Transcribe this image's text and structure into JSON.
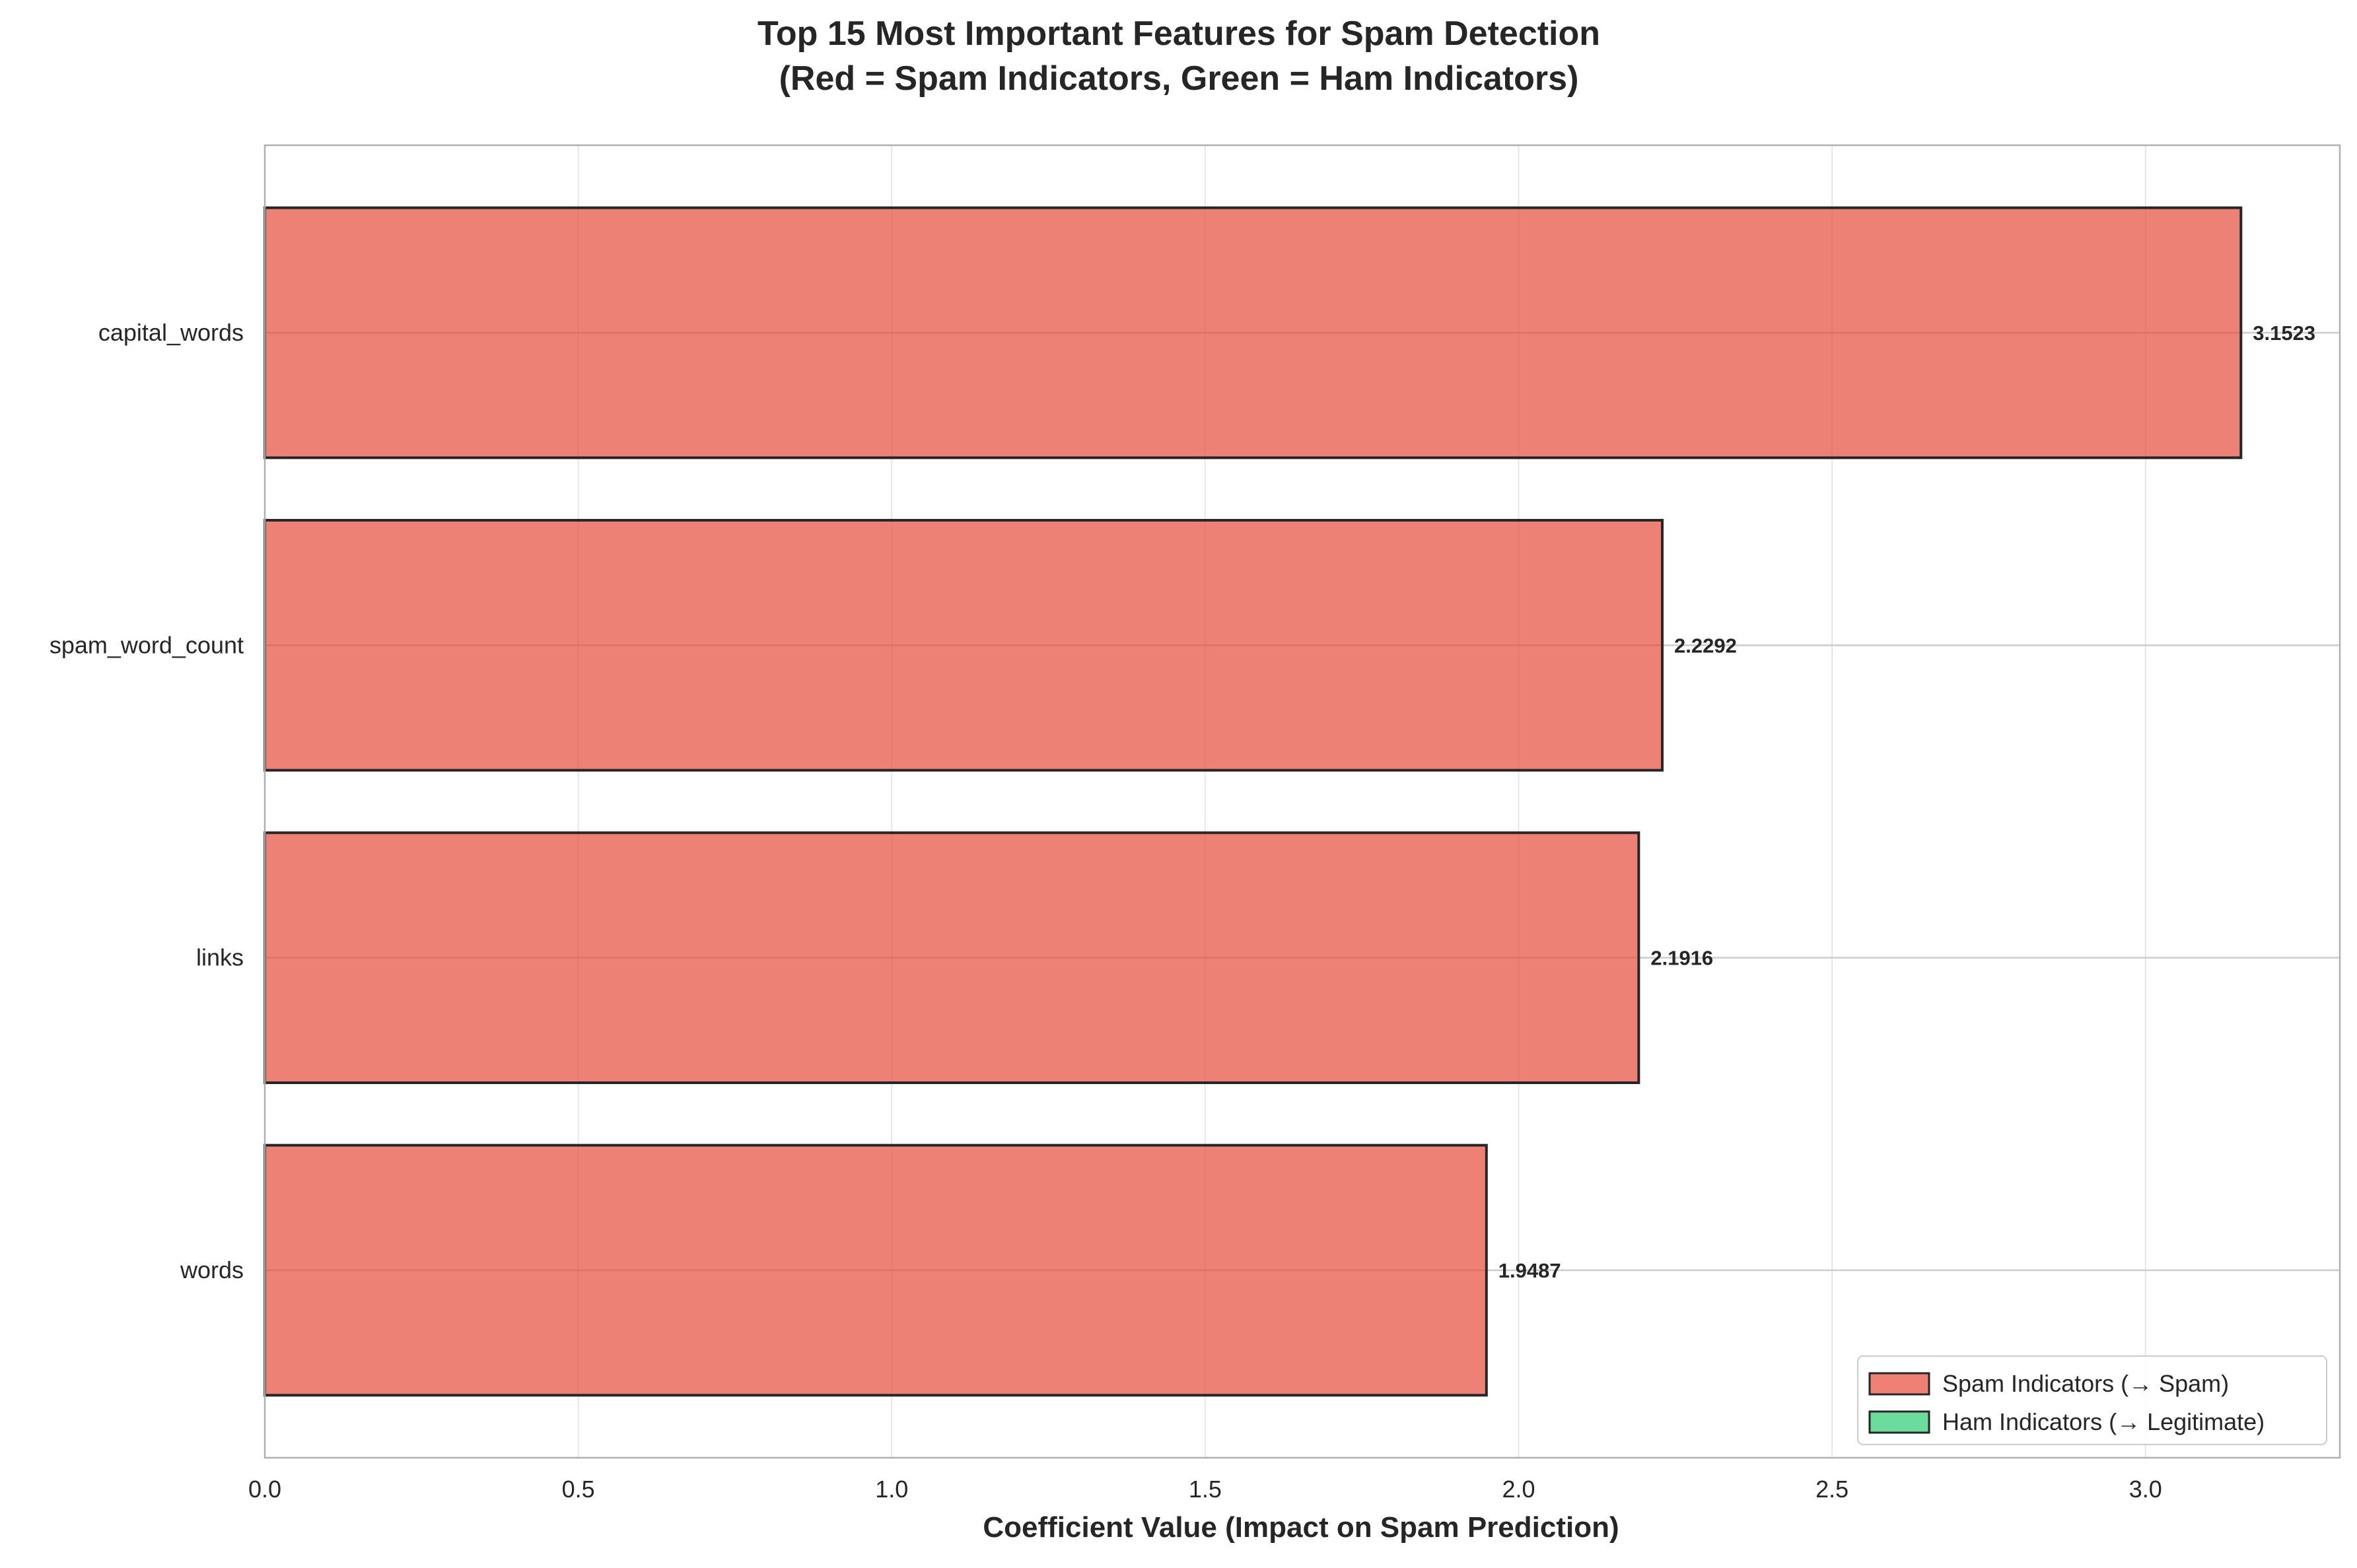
{
  "chart_data": {
    "type": "bar",
    "orientation": "horizontal",
    "title": "Top 15 Most Important Features for Spam Detection",
    "subtitle": "(Red = Spam Indicators, Green = Ham Indicators)",
    "xlabel": "Coefficient Value (Impact on Spam Prediction)",
    "ylabel": "",
    "xlim": [
      0,
      3.31
    ],
    "xticks": [
      "0.0",
      "0.5",
      "1.0",
      "1.5",
      "2.0",
      "2.5",
      "3.0"
    ],
    "grid": true,
    "categories": [
      "capital_words",
      "spam_word_count",
      "links",
      "words"
    ],
    "values": [
      3.1523,
      2.2292,
      2.1916,
      1.9487
    ],
    "value_labels": [
      "3.1523",
      "2.2292",
      "2.1916",
      "1.9487"
    ],
    "bar_groups": [
      "spam",
      "spam",
      "spam",
      "spam"
    ],
    "legend": {
      "position": "bottom-right",
      "items": [
        {
          "label": "Spam Indicators (→ Spam)",
          "color": "#e74c3c"
        },
        {
          "label": "Ham Indicators (→ Legitimate)",
          "color": "#2ecc71"
        }
      ]
    },
    "colors": {
      "spam": "#e74c3c",
      "ham": "#2ecc71",
      "edge": "#262626",
      "grid": "#e6e6e6",
      "axis": "#b0b0b0"
    }
  }
}
